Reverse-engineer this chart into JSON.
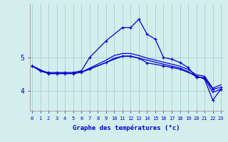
{
  "title": "",
  "xlabel": "Graphe des températures (°c)",
  "background_color": "#d4eeee",
  "grid_color": "#aad4d4",
  "line_color": "#0000cc",
  "x_ticks": [
    0,
    1,
    2,
    3,
    4,
    5,
    6,
    7,
    8,
    9,
    10,
    11,
    12,
    13,
    14,
    15,
    16,
    17,
    18,
    19,
    20,
    21,
    22,
    23
  ],
  "y_ticks": [
    4,
    5
  ],
  "ylim": [
    3.4,
    6.6
  ],
  "xlim": [
    -0.3,
    23.3
  ],
  "series": [
    {
      "x": [
        0,
        1,
        2,
        3,
        4,
        5,
        6,
        7,
        9,
        11,
        12,
        13,
        14,
        15,
        16,
        17,
        18,
        19,
        20,
        21,
        22,
        23
      ],
      "y": [
        4.75,
        4.6,
        4.55,
        4.55,
        4.55,
        4.55,
        4.6,
        5.0,
        5.5,
        5.9,
        5.9,
        6.15,
        5.7,
        5.55,
        5.0,
        4.95,
        4.85,
        4.7,
        4.4,
        4.4,
        4.05,
        4.1
      ],
      "marker": true
    },
    {
      "x": [
        0,
        1,
        2,
        3,
        4,
        5,
        6,
        7,
        8,
        9,
        10,
        11,
        12,
        13,
        14,
        15,
        16,
        17,
        18,
        19,
        20,
        21,
        22,
        23
      ],
      "y": [
        4.75,
        4.6,
        4.52,
        4.52,
        4.52,
        4.52,
        4.56,
        4.68,
        4.8,
        4.92,
        5.06,
        5.12,
        5.12,
        5.06,
        4.98,
        4.92,
        4.86,
        4.8,
        4.74,
        4.64,
        4.48,
        4.44,
        4.08,
        4.18
      ],
      "marker": false
    },
    {
      "x": [
        0,
        1,
        2,
        3,
        4,
        5,
        6,
        7,
        8,
        9,
        10,
        11,
        12,
        13,
        14,
        15,
        16,
        17,
        18,
        19,
        20,
        21,
        22,
        23
      ],
      "y": [
        4.75,
        4.6,
        4.52,
        4.52,
        4.52,
        4.52,
        4.56,
        4.65,
        4.75,
        4.85,
        4.98,
        5.04,
        5.04,
        4.98,
        4.92,
        4.86,
        4.8,
        4.74,
        4.68,
        4.58,
        4.42,
        4.38,
        3.95,
        4.05
      ],
      "marker": false
    },
    {
      "x": [
        0,
        2,
        3,
        4,
        5,
        6,
        7,
        9,
        11,
        12,
        13,
        14,
        16,
        17,
        18,
        21,
        22,
        23
      ],
      "y": [
        4.75,
        4.52,
        4.52,
        4.52,
        4.52,
        4.56,
        4.65,
        4.85,
        5.04,
        5.04,
        4.98,
        4.84,
        4.75,
        4.7,
        4.65,
        4.35,
        3.72,
        4.05
      ],
      "marker": true
    }
  ]
}
